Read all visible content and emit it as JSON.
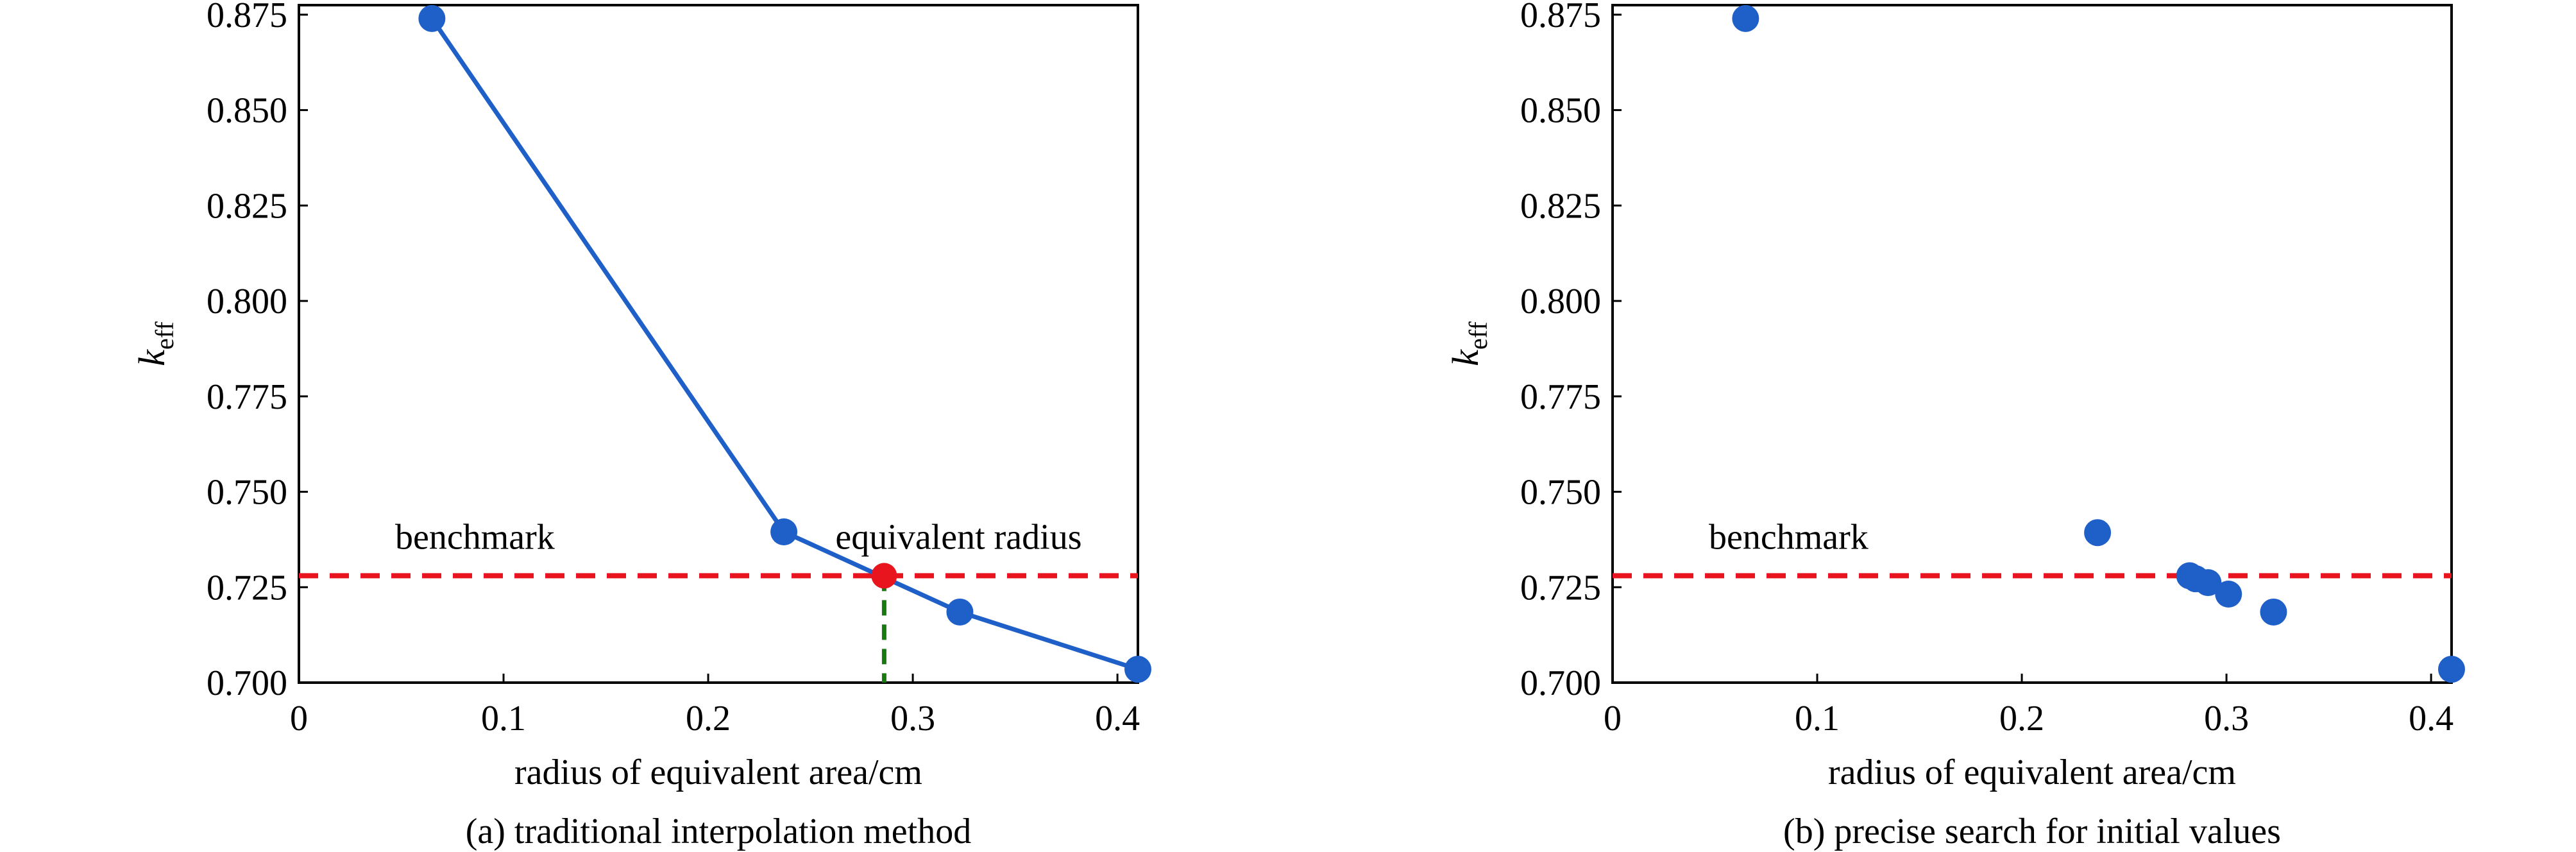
{
  "colors": {
    "point": "#1f5fc8",
    "line": "#1f5fc8",
    "benchmark": "#e8141e",
    "highlight": "#e8141e",
    "drop": "#1a7a12",
    "axis": "#000000"
  },
  "chart_data": [
    {
      "type": "line",
      "caption": "(a) traditional interpolation method",
      "xlabel": "radius of equivalent area/cm",
      "ylabel": {
        "main": "k",
        "sub": "eff"
      },
      "xlim": [
        0,
        0.41
      ],
      "ylim": [
        0.7,
        0.8775
      ],
      "xticks": [
        0,
        0.1,
        0.2,
        0.3,
        0.4
      ],
      "xtick_labels": [
        "0",
        "0.1",
        "0.2",
        "0.3",
        "0.4"
      ],
      "yticks": [
        0.7,
        0.725,
        0.75,
        0.775,
        0.8,
        0.825,
        0.85,
        0.875
      ],
      "ytick_labels": [
        "0.700",
        "0.725",
        "0.750",
        "0.775",
        "0.800",
        "0.825",
        "0.850",
        "0.875"
      ],
      "grid": false,
      "series": [
        {
          "x": [
            0.065,
            0.237,
            0.323,
            0.41
          ],
          "y": [
            0.874,
            0.7395,
            0.7185,
            0.7035
          ],
          "style": "line+markers"
        }
      ],
      "benchmark": {
        "y": 0.728,
        "label": "benchmark"
      },
      "highlight": {
        "x": 0.286,
        "y": 0.728,
        "label": "equivalent radius"
      }
    },
    {
      "type": "scatter",
      "caption": "(b) precise search for initial values",
      "xlabel": "radius of equivalent area/cm",
      "ylabel": {
        "main": "k",
        "sub": "eff"
      },
      "xlim": [
        0,
        0.41
      ],
      "ylim": [
        0.7,
        0.8775
      ],
      "xticks": [
        0,
        0.1,
        0.2,
        0.3,
        0.4
      ],
      "xtick_labels": [
        "0",
        "0.1",
        "0.2",
        "0.3",
        "0.4"
      ],
      "yticks": [
        0.7,
        0.725,
        0.75,
        0.775,
        0.8,
        0.825,
        0.85,
        0.875
      ],
      "ytick_labels": [
        "0.700",
        "0.725",
        "0.750",
        "0.775",
        "0.800",
        "0.825",
        "0.850",
        "0.875"
      ],
      "grid": false,
      "series": [
        {
          "x": [
            0.065,
            0.237,
            0.282,
            0.285,
            0.291,
            0.301,
            0.323,
            0.41
          ],
          "y": [
            0.874,
            0.7393,
            0.728,
            0.7272,
            0.7262,
            0.7232,
            0.7185,
            0.7035
          ],
          "style": "markers"
        }
      ],
      "benchmark": {
        "y": 0.728,
        "label": "benchmark"
      }
    }
  ]
}
